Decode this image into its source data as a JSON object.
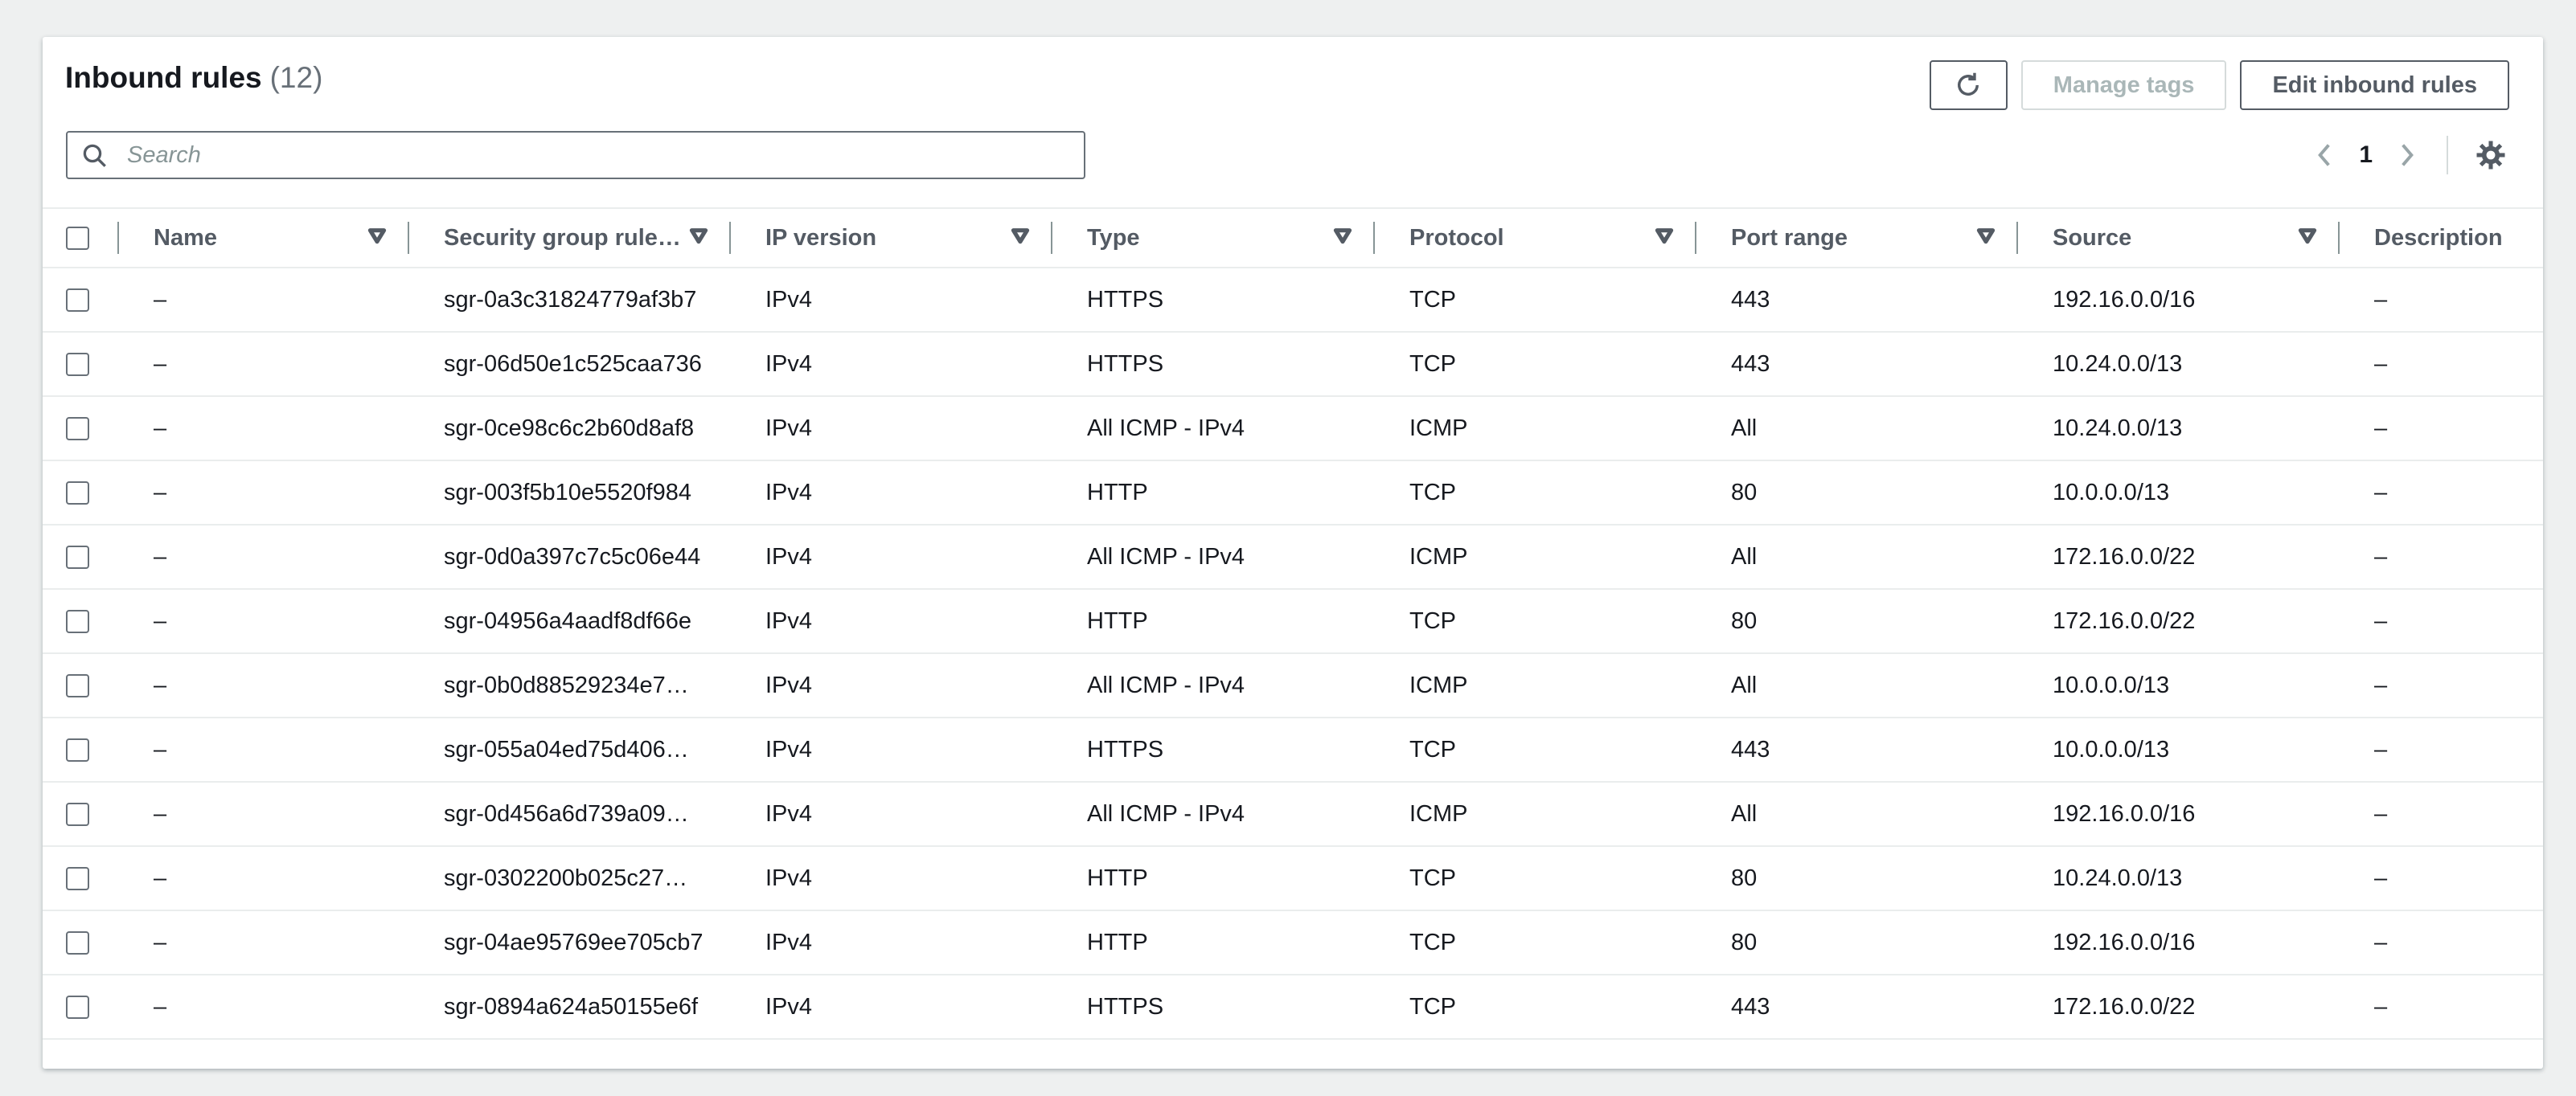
{
  "panel": {
    "title": "Inbound rules",
    "count": "(12)"
  },
  "toolbar": {
    "refresh_label": "Refresh",
    "manage_tags_label": "Manage tags",
    "edit_rules_label": "Edit inbound rules"
  },
  "search": {
    "placeholder": "Search",
    "value": ""
  },
  "pagination": {
    "current_page": "1"
  },
  "table": {
    "columns": [
      {
        "id": "name",
        "label": "Name",
        "filter": true
      },
      {
        "id": "sgr_id",
        "label": "Security group rule…",
        "filter": true
      },
      {
        "id": "ip_version",
        "label": "IP version",
        "filter": true
      },
      {
        "id": "type",
        "label": "Type",
        "filter": true
      },
      {
        "id": "protocol",
        "label": "Protocol",
        "filter": true
      },
      {
        "id": "port_range",
        "label": "Port range",
        "filter": true
      },
      {
        "id": "source",
        "label": "Source",
        "filter": true
      },
      {
        "id": "description",
        "label": "Description",
        "filter": false
      }
    ],
    "rows": [
      {
        "name": "–",
        "sgr_id": "sgr-0a3c31824779af3b7",
        "ip_version": "IPv4",
        "type": "HTTPS",
        "protocol": "TCP",
        "port_range": "443",
        "source": "192.16.0.0/16",
        "description": "–"
      },
      {
        "name": "–",
        "sgr_id": "sgr-06d50e1c525caa736",
        "ip_version": "IPv4",
        "type": "HTTPS",
        "protocol": "TCP",
        "port_range": "443",
        "source": "10.24.0.0/13",
        "description": "–"
      },
      {
        "name": "–",
        "sgr_id": "sgr-0ce98c6c2b60d8af8",
        "ip_version": "IPv4",
        "type": "All ICMP - IPv4",
        "protocol": "ICMP",
        "port_range": "All",
        "source": "10.24.0.0/13",
        "description": "–"
      },
      {
        "name": "–",
        "sgr_id": "sgr-003f5b10e5520f984",
        "ip_version": "IPv4",
        "type": "HTTP",
        "protocol": "TCP",
        "port_range": "80",
        "source": "10.0.0.0/13",
        "description": "–"
      },
      {
        "name": "–",
        "sgr_id": "sgr-0d0a397c7c5c06e44",
        "ip_version": "IPv4",
        "type": "All ICMP - IPv4",
        "protocol": "ICMP",
        "port_range": "All",
        "source": "172.16.0.0/22",
        "description": "–"
      },
      {
        "name": "–",
        "sgr_id": "sgr-04956a4aadf8df66e",
        "ip_version": "IPv4",
        "type": "HTTP",
        "protocol": "TCP",
        "port_range": "80",
        "source": "172.16.0.0/22",
        "description": "–"
      },
      {
        "name": "–",
        "sgr_id": "sgr-0b0d88529234e7…",
        "ip_version": "IPv4",
        "type": "All ICMP - IPv4",
        "protocol": "ICMP",
        "port_range": "All",
        "source": "10.0.0.0/13",
        "description": "–"
      },
      {
        "name": "–",
        "sgr_id": "sgr-055a04ed75d406…",
        "ip_version": "IPv4",
        "type": "HTTPS",
        "protocol": "TCP",
        "port_range": "443",
        "source": "10.0.0.0/13",
        "description": "–"
      },
      {
        "name": "–",
        "sgr_id": "sgr-0d456a6d739a09…",
        "ip_version": "IPv4",
        "type": "All ICMP - IPv4",
        "protocol": "ICMP",
        "port_range": "All",
        "source": "192.16.0.0/16",
        "description": "–"
      },
      {
        "name": "–",
        "sgr_id": "sgr-0302200b025c27…",
        "ip_version": "IPv4",
        "type": "HTTP",
        "protocol": "TCP",
        "port_range": "80",
        "source": "10.24.0.0/13",
        "description": "–"
      },
      {
        "name": "–",
        "sgr_id": "sgr-04ae95769ee705cb7",
        "ip_version": "IPv4",
        "type": "HTTP",
        "protocol": "TCP",
        "port_range": "80",
        "source": "192.16.0.0/16",
        "description": "–"
      },
      {
        "name": "–",
        "sgr_id": "sgr-0894a624a50155e6f",
        "ip_version": "IPv4",
        "type": "HTTPS",
        "protocol": "TCP",
        "port_range": "443",
        "source": "172.16.0.0/22",
        "description": "–"
      }
    ]
  },
  "colors": {
    "page_background": "#eef0f0",
    "card_background": "#ffffff",
    "text_primary": "#16191f",
    "text_secondary": "#545b64",
    "text_muted": "#687078",
    "disabled_text": "#aab7b8",
    "disabled_border": "#d5dbdb",
    "row_divider": "#eaeded",
    "header_separator": "#879596"
  }
}
